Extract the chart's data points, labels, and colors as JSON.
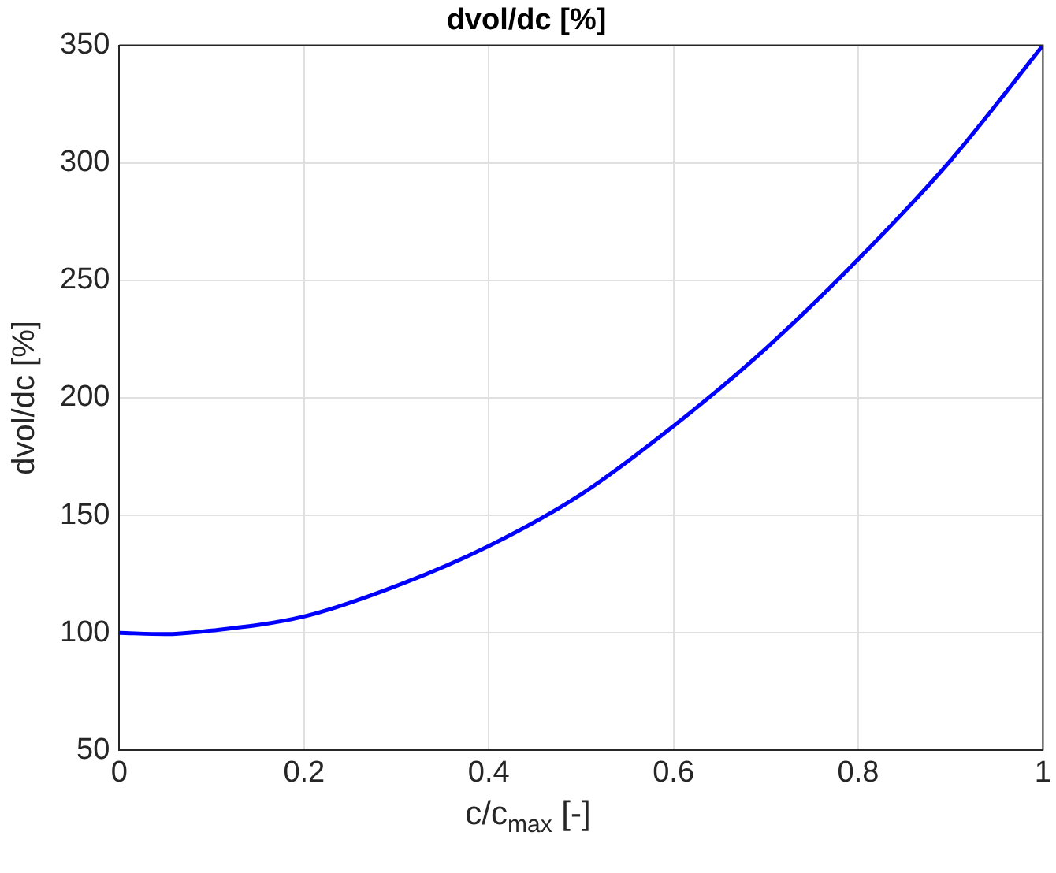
{
  "chart_data": {
    "type": "line",
    "title": "dvol/dc [%]",
    "xlabel": "c/c$_{max}$ [-]",
    "ylabel": "dvol/dc [%]",
    "x": [
      0,
      0.05,
      0.1,
      0.2,
      0.3,
      0.4,
      0.5,
      0.6,
      0.7,
      0.8,
      0.9,
      1
    ],
    "series": [
      {
        "color": "#0000ff",
        "values": [
          100,
          99.5,
          101,
          107,
          120,
          137,
          159,
          188,
          221,
          259,
          301,
          350
        ]
      }
    ],
    "xlim": [
      0,
      1
    ],
    "xticks": [
      0,
      0.2,
      0.4,
      0.6,
      0.8,
      1
    ],
    "ylim": [
      50,
      350
    ],
    "yticks": [
      50,
      100,
      150,
      200,
      250,
      300,
      350
    ],
    "grid": true,
    "legend": false,
    "marker": "none",
    "line_style": "solid"
  }
}
